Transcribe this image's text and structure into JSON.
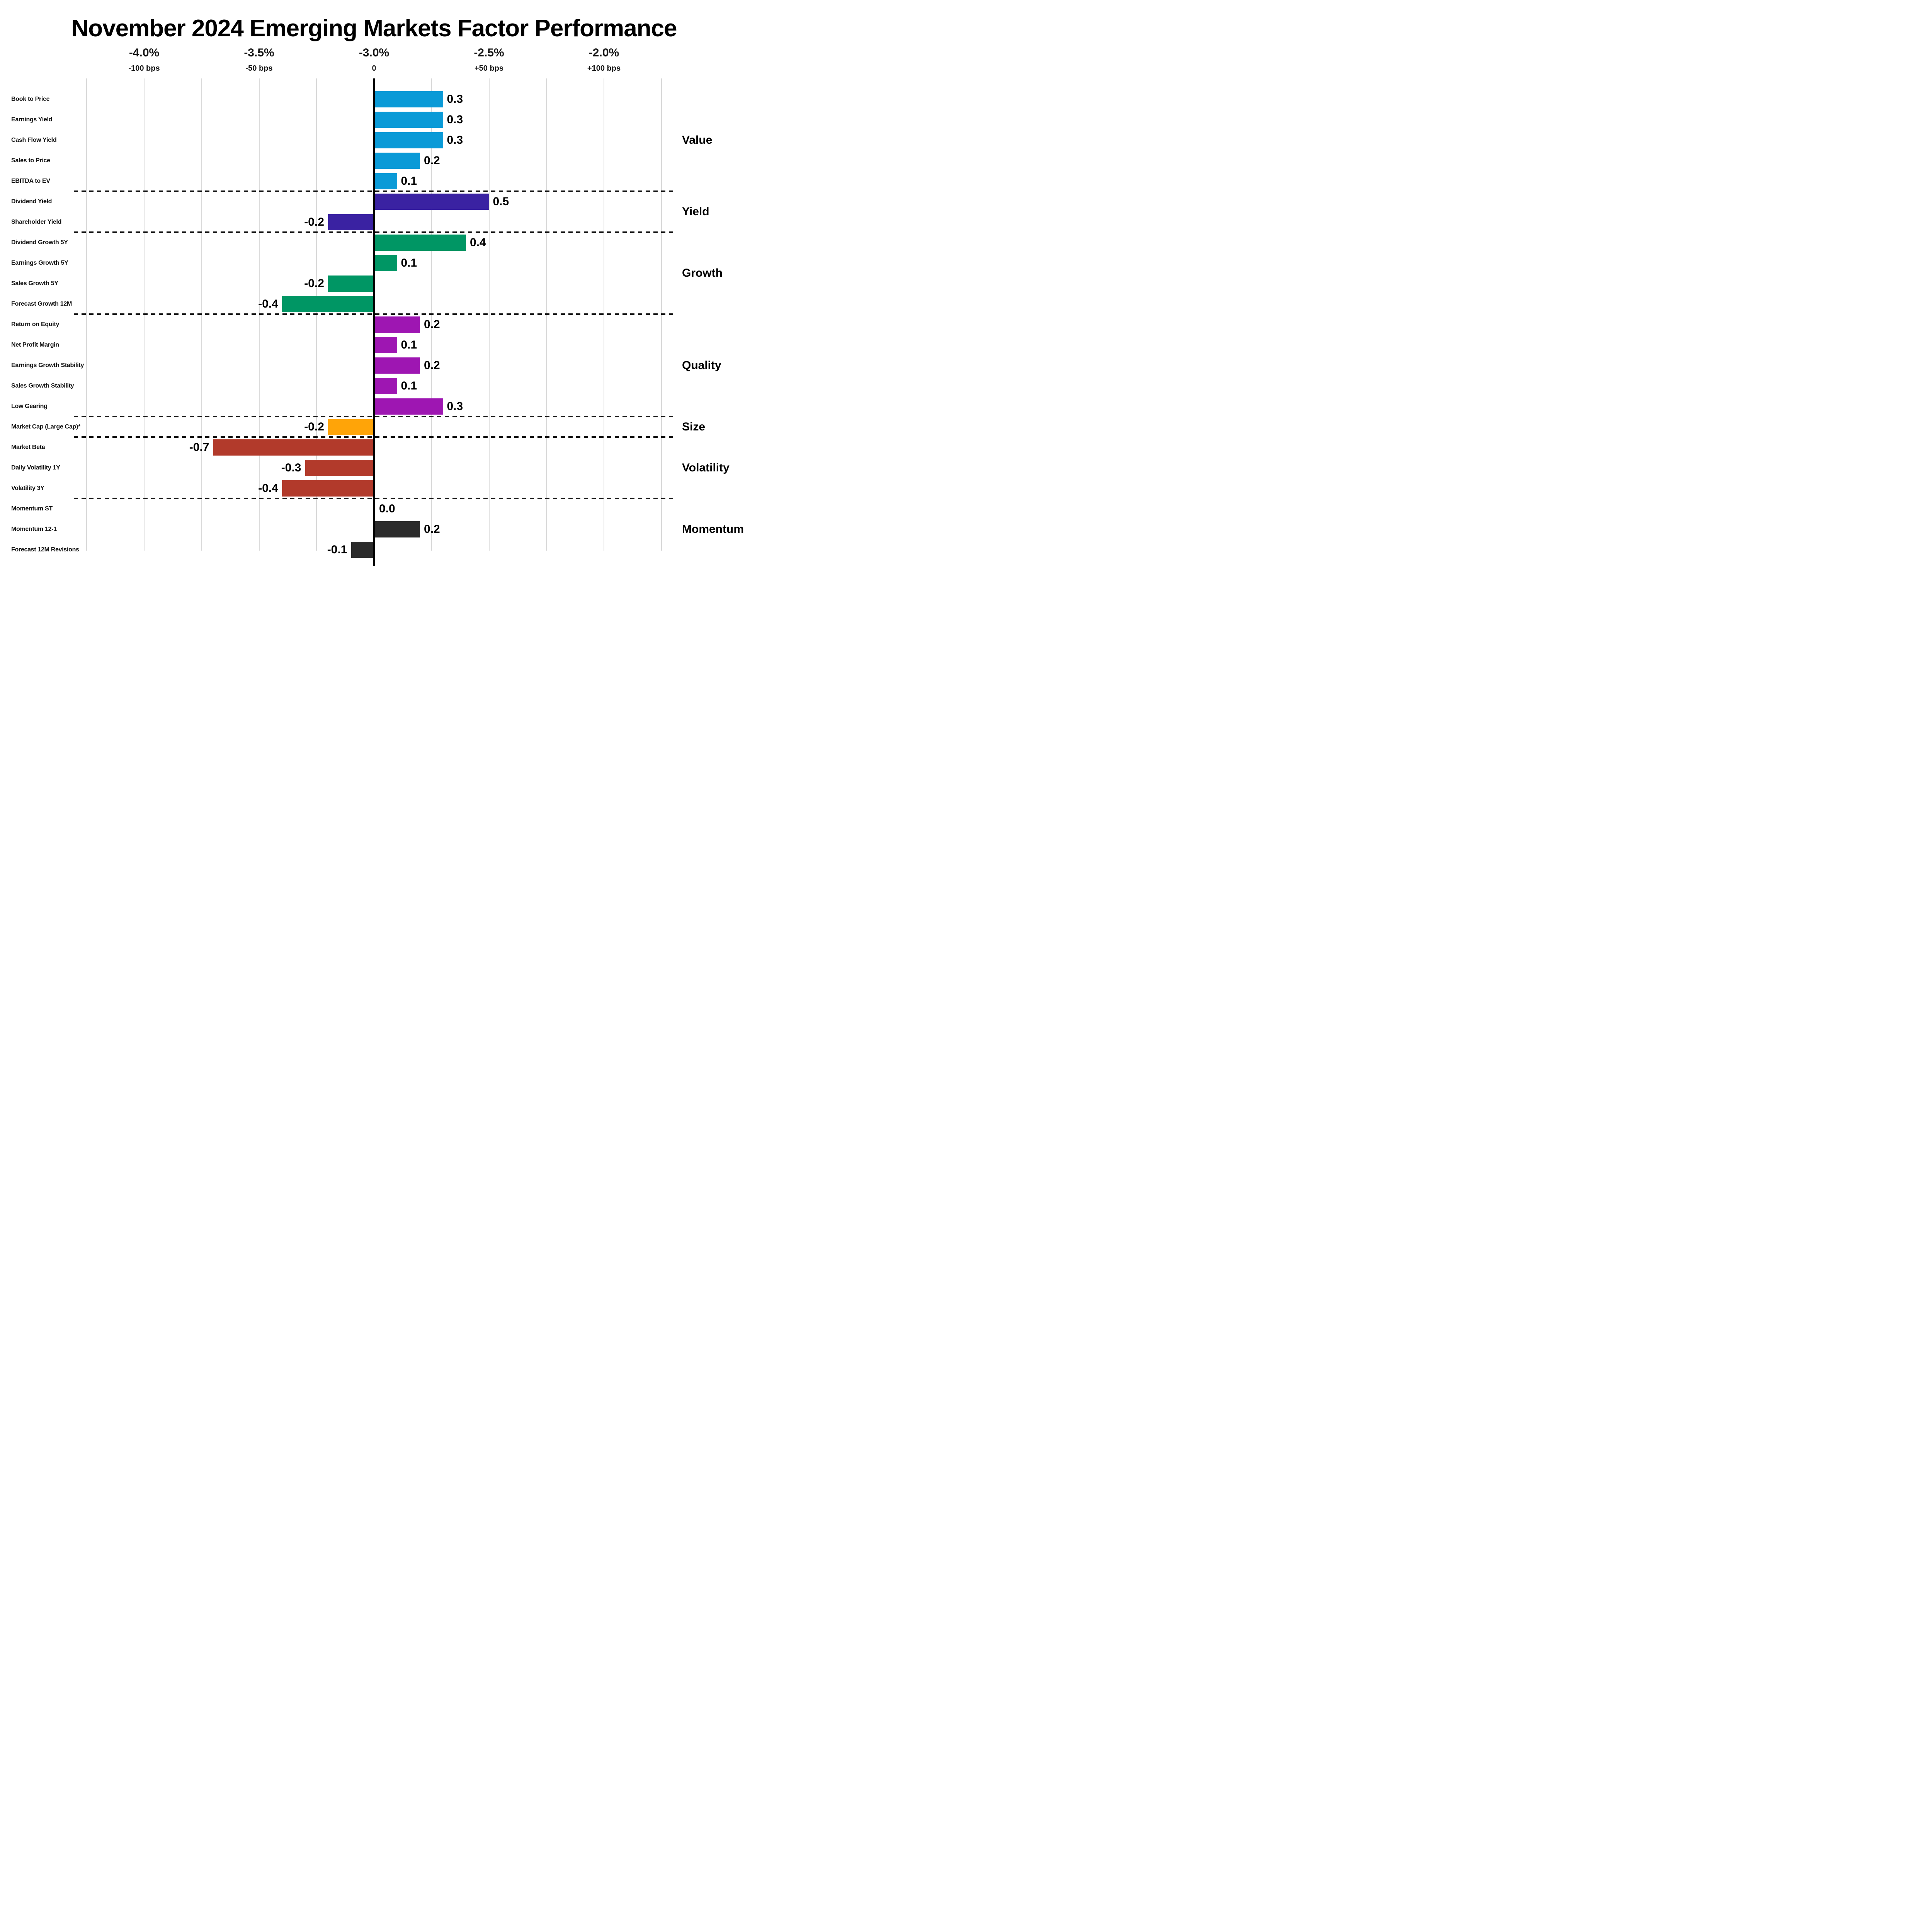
{
  "chart_data": {
    "type": "bar",
    "orientation": "horizontal",
    "title": "November 2024 Emerging Markets Factor Performance",
    "grid": true,
    "x_axis": {
      "zero_reference": "-3.0%",
      "range_offset_pct": [
        -1.25,
        1.25
      ],
      "grid_step_offset_pct": 0.25,
      "ticks": [
        {
          "pct": "-4.0%",
          "bps": "-100 bps",
          "offset": -1.0
        },
        {
          "pct": "-3.5%",
          "bps": "-50 bps",
          "offset": -0.5
        },
        {
          "pct": "-3.0%",
          "bps": "0",
          "offset": 0.0
        },
        {
          "pct": "-2.5%",
          "bps": "+50 bps",
          "offset": 0.5
        },
        {
          "pct": "-2.0%",
          "bps": "+100 bps",
          "offset": 1.0
        }
      ]
    },
    "colors": {
      "gridline": "#d9d9d9",
      "axis": "#000000",
      "separator": "#141414",
      "text": "#141414"
    },
    "series": [
      {
        "group": "Value",
        "color": "#0a9ad7",
        "points": [
          {
            "label": "Book to Price",
            "value": 0.3,
            "value_label": "0.3"
          },
          {
            "label": "Earnings Yield",
            "value": 0.3,
            "value_label": "0.3"
          },
          {
            "label": "Cash Flow Yield",
            "value": 0.3,
            "value_label": "0.3"
          },
          {
            "label": "Sales to Price",
            "value": 0.2,
            "value_label": "0.2"
          },
          {
            "label": "EBITDA to EV",
            "value": 0.1,
            "value_label": "0.1"
          }
        ]
      },
      {
        "group": "Yield",
        "color": "#3a22a2",
        "points": [
          {
            "label": "Dividend Yield",
            "value": 0.5,
            "value_label": "0.5"
          },
          {
            "label": "Shareholder Yield",
            "value": -0.2,
            "value_label": "-0.2"
          }
        ]
      },
      {
        "group": "Growth",
        "color": "#009664",
        "points": [
          {
            "label": "Dividend Growth 5Y",
            "value": 0.4,
            "value_label": "0.4"
          },
          {
            "label": "Earnings Growth 5Y",
            "value": 0.1,
            "value_label": "0.1"
          },
          {
            "label": "Sales Growth 5Y",
            "value": -0.2,
            "value_label": "-0.2"
          },
          {
            "label": "Forecast Growth 12M",
            "value": -0.4,
            "value_label": "-0.4"
          }
        ]
      },
      {
        "group": "Quality",
        "color": "#9e16b2",
        "points": [
          {
            "label": "Return on Equity",
            "value": 0.2,
            "value_label": "0.2"
          },
          {
            "label": "Net Profit Margin",
            "value": 0.1,
            "value_label": "0.1"
          },
          {
            "label": "Earnings Growth Stability",
            "value": 0.2,
            "value_label": "0.2"
          },
          {
            "label": "Sales Growth Stability",
            "value": 0.1,
            "value_label": "0.1"
          },
          {
            "label": "Low Gearing",
            "value": 0.3,
            "value_label": "0.3"
          }
        ]
      },
      {
        "group": "Size",
        "color": "#ffa408",
        "points": [
          {
            "label": "Market Cap (Large Cap)*",
            "value": -0.2,
            "value_label": "-0.2"
          }
        ]
      },
      {
        "group": "Volatility",
        "color": "#b23a2b",
        "points": [
          {
            "label": "Market Beta",
            "value": -0.7,
            "value_label": "-0.7"
          },
          {
            "label": "Daily Volatility 1Y",
            "value": -0.3,
            "value_label": "-0.3"
          },
          {
            "label": "Volatility 3Y",
            "value": -0.4,
            "value_label": "-0.4"
          }
        ]
      },
      {
        "group": "Momentum",
        "color": "#2b2b2b",
        "points": [
          {
            "label": "Momentum ST",
            "value": 0.0,
            "value_label": "0.0"
          },
          {
            "label": "Momentum 12-1",
            "value": 0.2,
            "value_label": "0.2"
          },
          {
            "label": "Forecast 12M Revisions",
            "value": -0.1,
            "value_label": "-0.1"
          }
        ]
      }
    ]
  }
}
